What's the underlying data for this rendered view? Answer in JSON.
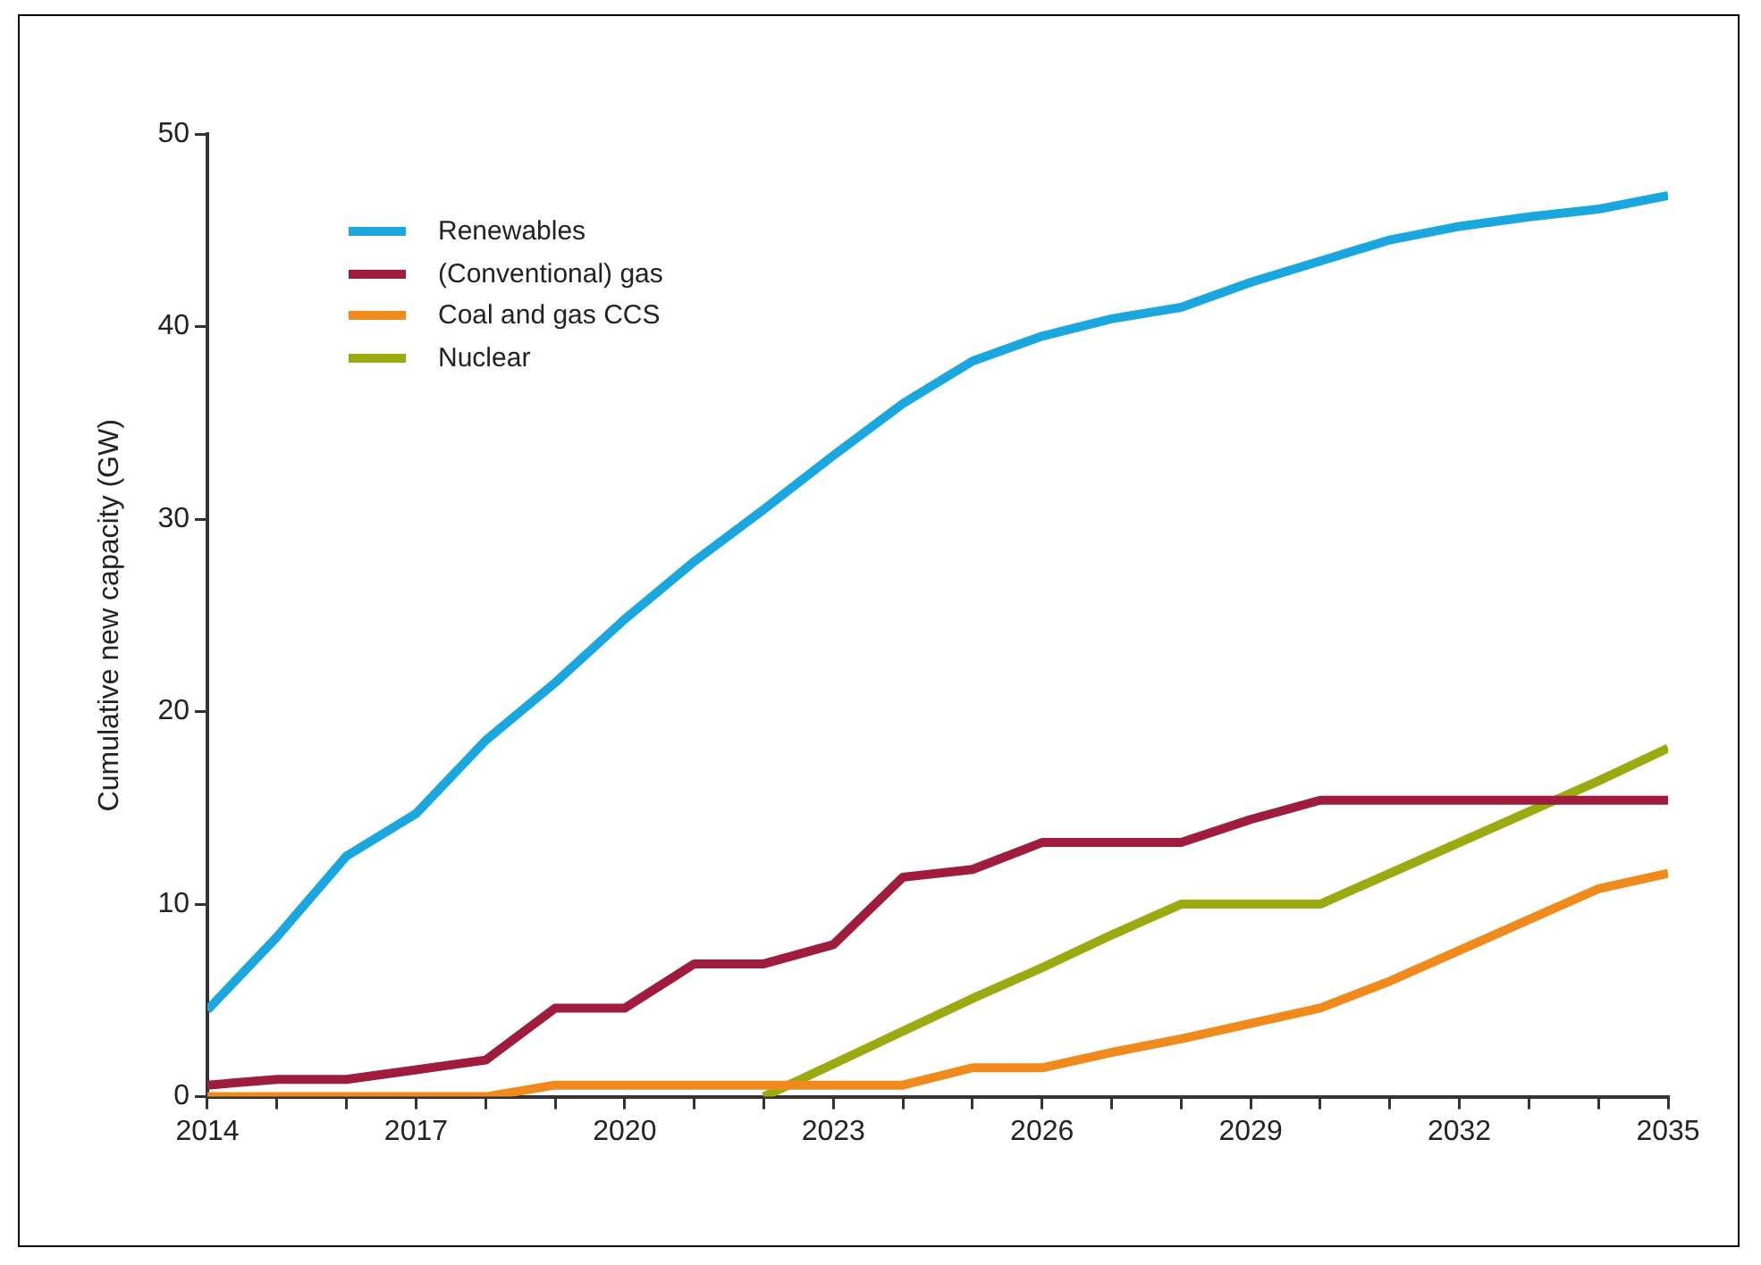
{
  "chart_data": {
    "type": "line",
    "ylabel": "Cumulative new capacity (GW)",
    "x": [
      2014,
      2015,
      2016,
      2017,
      2018,
      2019,
      2020,
      2021,
      2022,
      2023,
      2024,
      2025,
      2026,
      2027,
      2028,
      2029,
      2030,
      2031,
      2032,
      2033,
      2034,
      2035
    ],
    "series": [
      {
        "name": "Renewables",
        "color": "#1aa7e0",
        "values": [
          4.5,
          8.3,
          12.5,
          14.7,
          18.5,
          21.5,
          24.8,
          27.8,
          30.5,
          33.3,
          36,
          38.2,
          39.5,
          40.4,
          41,
          42.3,
          43.4,
          44.5,
          45.2,
          45.7,
          46.1,
          46.8
        ]
      },
      {
        "name": "(Conventional) gas",
        "color": "#a01c3c",
        "values": [
          0.6,
          0.9,
          0.9,
          1.4,
          1.9,
          4.6,
          4.6,
          6.9,
          6.9,
          7.9,
          11.4,
          11.8,
          13.2,
          13.2,
          13.2,
          14.4,
          15.4,
          15.4,
          15.4,
          15.4,
          15.4,
          15.4
        ]
      },
      {
        "name": "Coal and gas CCS",
        "color": "#f08a1c",
        "values": [
          0,
          0,
          0,
          0,
          0,
          0.6,
          0.6,
          0.6,
          0.6,
          0.6,
          0.6,
          1.5,
          1.5,
          2.3,
          3,
          3.8,
          4.6,
          6,
          7.6,
          9.2,
          10.8,
          11.6
        ]
      },
      {
        "name": "Nuclear",
        "color": "#9aaa10",
        "values": [
          null,
          null,
          null,
          null,
          null,
          null,
          null,
          null,
          0,
          1.7,
          3.4,
          5.1,
          6.7,
          8.4,
          10,
          10,
          10,
          11.6,
          13.2,
          14.8,
          16.4,
          18.1
        ]
      }
    ],
    "xlim": [
      2014,
      2035
    ],
    "xticks": [
      2014,
      {
        "value": 2015,
        "label": null
      },
      {
        "value": 2016,
        "label": null
      },
      2017,
      {
        "value": 2018,
        "label": null
      },
      {
        "value": 2019,
        "label": null
      },
      2020,
      {
        "value": 2021,
        "label": null
      },
      {
        "value": 2022,
        "label": null
      },
      2023,
      {
        "value": 2024,
        "label": null
      },
      {
        "value": 2025,
        "label": null
      },
      2026,
      {
        "value": 2027,
        "label": null
      },
      {
        "value": 2028,
        "label": null
      },
      2029,
      {
        "value": 2030,
        "label": null
      },
      {
        "value": 2031,
        "label": null
      },
      2032,
      {
        "value": 2033,
        "label": null
      },
      {
        "value": 2034,
        "label": null
      },
      2035
    ],
    "ylim": [
      0,
      50
    ],
    "yticks": [
      0,
      10,
      20,
      30,
      40,
      50
    ],
    "grid": false,
    "legend": "top left",
    "marker": "none",
    "line_style": "solid"
  }
}
